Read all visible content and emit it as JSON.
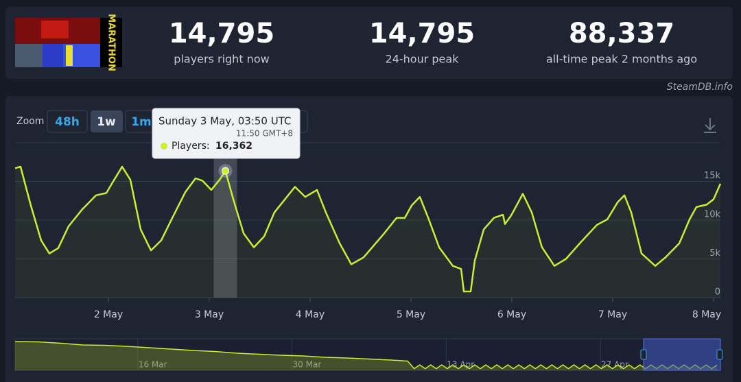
{
  "header": {
    "image_text": "MARATHON",
    "stats": [
      {
        "value": "14,795",
        "label": "players right now"
      },
      {
        "value": "14,795",
        "label": "24-hour peak"
      },
      {
        "value": "88,337",
        "label": "all-time peak 2 months ago"
      }
    ]
  },
  "watermark": "SteamDB.info",
  "zoom": {
    "label": "Zoom",
    "buttons": [
      "48h",
      "1w",
      "1m"
    ]
  },
  "chart_data": [
    {
      "type": "line",
      "color": "#c8f02e",
      "xlim": [
        1.075,
        8.068
      ],
      "ylim": [
        0,
        20000
      ],
      "xticks": [
        {
          "value": 2,
          "label": "2 May"
        },
        {
          "value": 3,
          "label": "3 May"
        },
        {
          "value": 4,
          "label": "4 May"
        },
        {
          "value": 5,
          "label": "5 May"
        },
        {
          "value": 6,
          "label": "6 May"
        },
        {
          "value": 7,
          "label": "7 May"
        },
        {
          "value": 8,
          "label": "8 May"
        }
      ],
      "yticks": [
        0,
        {
          "value": 5000,
          "label": "5k"
        },
        {
          "value": 10000,
          "label": "10k"
        },
        {
          "value": 15000,
          "label": "15k"
        }
      ],
      "grid": true,
      "tooltip": {
        "title": "Sunday 3 May, 03:50 UTC",
        "local_time": "11:50 GMT+8",
        "label": "Players:",
        "value": {
          "value": 16362,
          "label": "16,362"
        }
      },
      "series": [
        {
          "color": "#c8f02e",
          "x": [
            1.075,
            1.129,
            1.231,
            1.333,
            1.415,
            1.503,
            1.605,
            1.741,
            1.878,
            1.98,
            2.048,
            2.136,
            2.218,
            2.32,
            2.422,
            2.524,
            2.626,
            2.762,
            2.864,
            2.932,
            3.02,
            3.102,
            3.16,
            3.238,
            3.34,
            3.442,
            3.544,
            3.646,
            3.714,
            3.85,
            3.952,
            4.068,
            4.156,
            4.293,
            4.408,
            4.531,
            4.735,
            4.857,
            4.939,
            5.007,
            5.088,
            5.177,
            5.279,
            5.415,
            5.497,
            5.524,
            5.592,
            5.633,
            5.721,
            5.823,
            5.912,
            5.932,
            5.993,
            6.109,
            6.197,
            6.299,
            6.422,
            6.537,
            6.673,
            6.844,
            6.946,
            7.048,
            7.116,
            7.184,
            7.286,
            7.422,
            7.524,
            7.66,
            7.762,
            7.83,
            7.932,
            8.0,
            8.068
          ],
          "values": [
            16700,
            16900,
            11900,
            7400,
            5700,
            6400,
            9200,
            11400,
            13200,
            13500,
            15000,
            16900,
            15200,
            8800,
            6100,
            7400,
            10100,
            13600,
            15400,
            15100,
            13900,
            15200,
            16362,
            12700,
            8300,
            6500,
            7900,
            11000,
            12100,
            14300,
            13000,
            13900,
            11000,
            7000,
            4300,
            5200,
            8300,
            10300,
            10300,
            11900,
            13000,
            10100,
            6500,
            4100,
            3700,
            800,
            800,
            4800,
            8800,
            10300,
            10700,
            9500,
            10600,
            13400,
            11000,
            6500,
            4100,
            5000,
            7000,
            9400,
            10100,
            12300,
            13200,
            11000,
            5700,
            4100,
            5200,
            7000,
            10100,
            11700,
            12000,
            12700,
            14700
          ]
        }
      ]
    },
    {
      "type": "area",
      "color": "#c8f02e",
      "xlim": [
        63.86,
        127.9
      ],
      "ylim": [
        0,
        92000
      ],
      "xticks": [
        {
          "value": 75,
          "label": "16 Mar"
        },
        {
          "value": 89,
          "label": "30 Mar"
        },
        {
          "value": 103,
          "label": "13 Apr"
        },
        {
          "value": 117,
          "label": "27 Apr"
        }
      ],
      "series": [
        {
          "color": "#c8f02e",
          "x": [
            63.86,
            66,
            68,
            70,
            72,
            74,
            76,
            78,
            80,
            82,
            84,
            86,
            88,
            90,
            92,
            94,
            96,
            98,
            99.5,
            100.1,
            100.6,
            101.1,
            101.6,
            102.1,
            102.6,
            103.1,
            103.6,
            104.1,
            104.6,
            105.1,
            105.6,
            106.1,
            106.6,
            107.1,
            107.6,
            108.1,
            108.6,
            109.1,
            109.6,
            110.1,
            110.6,
            111.1,
            111.6,
            112.1,
            112.6,
            113.1,
            113.6,
            114.1,
            114.6,
            115.1,
            115.6,
            116.1,
            116.6,
            117.1,
            117.6,
            118.1,
            118.6,
            119.1,
            119.6,
            120.1,
            120.6,
            121.1,
            121.6,
            122.1,
            122.6,
            123.1,
            123.6,
            124.1,
            124.6,
            125.1,
            125.6,
            126.1,
            126.6,
            127.1,
            127.6
          ],
          "values": [
            84000,
            83000,
            79000,
            74000,
            73000,
            70000,
            66000,
            62000,
            58000,
            55000,
            50000,
            47000,
            44000,
            42000,
            38000,
            36000,
            33000,
            30000,
            27000,
            5000,
            16000,
            5000,
            16000,
            5000,
            16000,
            5000,
            16000,
            5000,
            16000,
            5000,
            16000,
            5000,
            16000,
            5000,
            16000,
            5000,
            16000,
            5000,
            16000,
            5000,
            16000,
            5000,
            16000,
            5000,
            16000,
            5000,
            16000,
            5000,
            16000,
            5000,
            16000,
            5000,
            16000,
            5000,
            16000,
            5000,
            16000,
            5000,
            16000,
            5000,
            16000,
            5000,
            16000,
            5000,
            16000,
            5000,
            16000,
            5000,
            16000,
            5000,
            16000,
            5000,
            16000,
            5000,
            16000
          ]
        }
      ]
    }
  ]
}
